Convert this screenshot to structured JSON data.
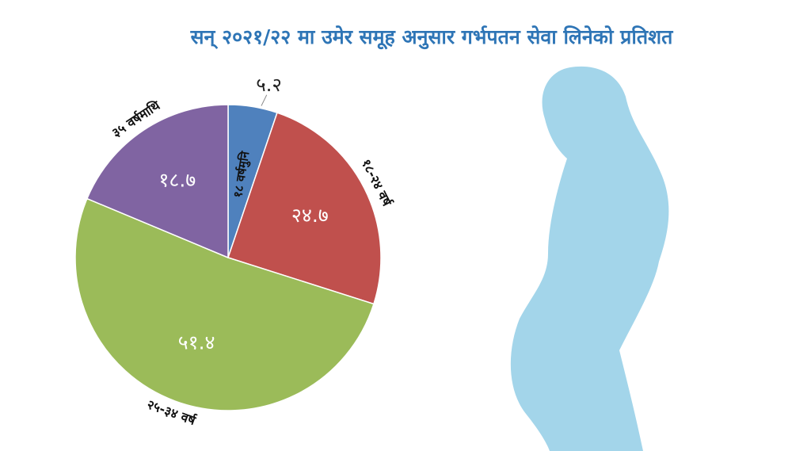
{
  "chart_data": {
    "type": "pie",
    "title": "सन् २०२१/२२ मा उमेर समूह अनुसार गर्भपतन सेवा लिनेको प्रतिशत",
    "categories": [
      "१८ वर्षमुनि",
      "१८-२४ वर्ष",
      "२५-३४ वर्ष",
      "३५ वर्षमाथि"
    ],
    "values": [
      5.2,
      24.7,
      51.4,
      18.7
    ],
    "value_labels": [
      "५.२",
      "२४.७",
      "५१.४",
      "१८.७"
    ],
    "colors": [
      "#4f81bd",
      "#c0504d",
      "#9bbb59",
      "#8064a2"
    ]
  }
}
